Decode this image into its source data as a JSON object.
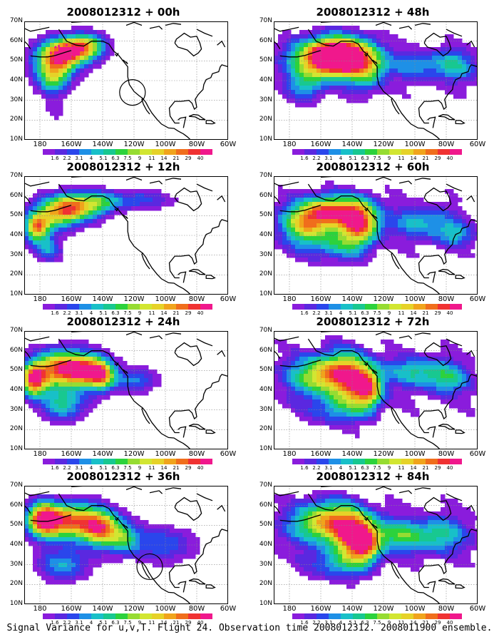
{
  "panels": [
    {
      "title": "2008012312 + 00h"
    },
    {
      "title": "2008012312 + 48h"
    },
    {
      "title": "2008012312 + 12h"
    },
    {
      "title": "2008012312 + 60h"
    },
    {
      "title": "2008012312 + 24h"
    },
    {
      "title": "2008012312 + 72h"
    },
    {
      "title": "2008012312 + 36h"
    },
    {
      "title": "2008012312 + 84h"
    }
  ],
  "y_ticks": [
    "70N",
    "60N",
    "50N",
    "40N",
    "30N",
    "20N",
    "10N"
  ],
  "x_ticks": [
    "180",
    "160W",
    "140W",
    "120W",
    "100W",
    "80W",
    "60W"
  ],
  "colorbar_labels": [
    "1.6",
    "2.2",
    "3.1",
    "4",
    "5.1",
    "6.3",
    "7.5",
    "9",
    "11",
    "14",
    "21",
    "29",
    "40"
  ],
  "colorbar_colors": [
    "#8a1cdc",
    "#5a28e0",
    "#2a46ec",
    "#1e90e6",
    "#18c0c8",
    "#18c890",
    "#2cd23c",
    "#96dc32",
    "#d2e632",
    "#e6d228",
    "#f0a41c",
    "#f06e1c",
    "#f03232",
    "#f0188c"
  ],
  "caption": "Signal Variance for u,v,T. Flight 24. Observation time 2008012312. 2008011900 ensemble."
}
